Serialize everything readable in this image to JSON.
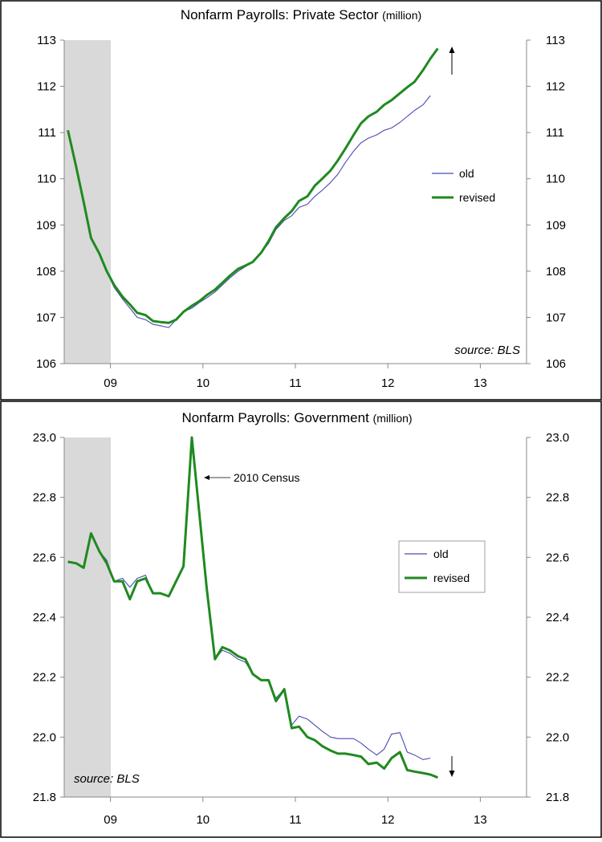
{
  "colors": {
    "old": "#4a4ab0",
    "revised": "#1f8a1f",
    "recession": "#d9d9d9",
    "frame": "#000000",
    "axis": "#888888"
  },
  "chart_data": [
    {
      "type": "line",
      "title": "Nonfarm Payrolls: Private Sector",
      "title_unit": "(million)",
      "source": "source: BLS",
      "legend_position": "right",
      "grid": false,
      "x_tick_labels": [
        "09",
        "10",
        "11",
        "12",
        "13"
      ],
      "x_ticks": [
        2009.0,
        2010.0,
        2011.0,
        2012.0,
        2013.0
      ],
      "xlim": [
        2008.5,
        2013.5
      ],
      "y_tick_labels": [
        "106",
        "107",
        "108",
        "109",
        "110",
        "111",
        "112",
        "113"
      ],
      "y_ticks": [
        106,
        107,
        108,
        109,
        110,
        111,
        112,
        113
      ],
      "ylim": [
        106,
        113
      ],
      "recession_shading": [
        2008.5,
        2009.0
      ],
      "arrow_direction": "up",
      "series": [
        {
          "name": "old",
          "x": [
            2008.54,
            2008.63,
            2008.71,
            2008.79,
            2008.88,
            2008.96,
            2009.04,
            2009.13,
            2009.21,
            2009.29,
            2009.38,
            2009.46,
            2009.54,
            2009.63,
            2009.71,
            2009.79,
            2009.88,
            2009.96,
            2010.04,
            2010.13,
            2010.21,
            2010.29,
            2010.38,
            2010.46,
            2010.54,
            2010.63,
            2010.71,
            2010.79,
            2010.88,
            2010.96,
            2011.04,
            2011.13,
            2011.21,
            2011.29,
            2011.38,
            2011.46,
            2011.54,
            2011.63,
            2011.71,
            2011.79,
            2011.88,
            2011.96,
            2012.04,
            2012.13,
            2012.21,
            2012.29,
            2012.38,
            2012.46
          ],
          "y": [
            111.05,
            110.25,
            109.5,
            108.7,
            108.4,
            107.98,
            107.65,
            107.4,
            107.2,
            107.0,
            106.95,
            106.85,
            106.82,
            106.78,
            106.95,
            107.12,
            107.2,
            107.32,
            107.42,
            107.55,
            107.7,
            107.85,
            108.0,
            108.1,
            108.2,
            108.4,
            108.6,
            108.9,
            109.1,
            109.2,
            109.38,
            109.45,
            109.62,
            109.75,
            109.92,
            110.1,
            110.35,
            110.6,
            110.78,
            110.88,
            110.95,
            111.05,
            111.1,
            111.22,
            111.35,
            111.48,
            111.6,
            111.8
          ]
        },
        {
          "name": "revised",
          "x": [
            2008.54,
            2008.63,
            2008.71,
            2008.79,
            2008.88,
            2008.96,
            2009.04,
            2009.13,
            2009.21,
            2009.29,
            2009.38,
            2009.46,
            2009.54,
            2009.63,
            2009.71,
            2009.79,
            2009.88,
            2009.96,
            2010.04,
            2010.13,
            2010.21,
            2010.29,
            2010.38,
            2010.46,
            2010.54,
            2010.63,
            2010.71,
            2010.79,
            2010.88,
            2010.96,
            2011.04,
            2011.13,
            2011.21,
            2011.29,
            2011.38,
            2011.46,
            2011.54,
            2011.63,
            2011.71,
            2011.79,
            2011.88,
            2011.96,
            2012.04,
            2012.13,
            2012.21,
            2012.29,
            2012.38,
            2012.46,
            2012.54
          ],
          "y": [
            111.05,
            110.25,
            109.5,
            108.72,
            108.38,
            108.0,
            107.7,
            107.45,
            107.28,
            107.1,
            107.05,
            106.92,
            106.9,
            106.88,
            106.95,
            107.12,
            107.25,
            107.35,
            107.48,
            107.6,
            107.75,
            107.9,
            108.05,
            108.12,
            108.2,
            108.4,
            108.65,
            108.95,
            109.15,
            109.3,
            109.52,
            109.62,
            109.85,
            110.0,
            110.18,
            110.4,
            110.65,
            110.95,
            111.2,
            111.35,
            111.45,
            111.6,
            111.7,
            111.85,
            111.98,
            112.1,
            112.35,
            112.6,
            112.82
          ]
        }
      ]
    },
    {
      "type": "line",
      "title": "Nonfarm Payrolls: Government",
      "title_unit": "(million)",
      "source": "source: BLS",
      "legend_position": "right",
      "grid": false,
      "annotation": "2010 Census",
      "x_tick_labels": [
        "09",
        "10",
        "11",
        "12",
        "13"
      ],
      "x_ticks": [
        2009.0,
        2010.0,
        2011.0,
        2012.0,
        2013.0
      ],
      "xlim": [
        2008.5,
        2013.5
      ],
      "y_tick_labels": [
        "21.8",
        "22.0",
        "22.2",
        "22.4",
        "22.6",
        "22.8",
        "23.0"
      ],
      "y_ticks": [
        21.8,
        22.0,
        22.2,
        22.4,
        22.6,
        22.8,
        23.0
      ],
      "ylim": [
        21.8,
        23.0
      ],
      "recession_shading": [
        2008.5,
        2009.0
      ],
      "arrow_direction": "down",
      "series": [
        {
          "name": "old",
          "x": [
            2008.54,
            2008.63,
            2008.71,
            2008.79,
            2008.88,
            2008.96,
            2009.04,
            2009.13,
            2009.21,
            2009.29,
            2009.38,
            2009.46,
            2009.54,
            2009.63,
            2009.71,
            2009.79,
            2009.88,
            2009.96,
            2010.04,
            2010.13,
            2010.21,
            2010.29,
            2010.38,
            2010.46,
            2010.54,
            2010.63,
            2010.71,
            2010.79,
            2010.88,
            2010.96,
            2011.04,
            2011.13,
            2011.21,
            2011.29,
            2011.38,
            2011.46,
            2011.54,
            2011.63,
            2011.71,
            2011.79,
            2011.88,
            2011.96,
            2012.04,
            2012.13,
            2012.21,
            2012.29,
            2012.38,
            2012.46
          ],
          "y": [
            22.585,
            22.58,
            22.565,
            22.68,
            22.62,
            22.59,
            22.52,
            22.53,
            22.5,
            22.53,
            22.54,
            22.48,
            22.48,
            22.47,
            22.52,
            22.57,
            23.0,
            22.75,
            22.5,
            22.26,
            22.29,
            22.28,
            22.26,
            22.25,
            22.21,
            22.19,
            22.19,
            22.13,
            22.16,
            22.04,
            22.07,
            22.06,
            22.04,
            22.02,
            22.0,
            21.995,
            21.995,
            21.995,
            21.98,
            21.96,
            21.94,
            21.96,
            22.01,
            22.015,
            21.95,
            21.94,
            21.925,
            21.93
          ]
        },
        {
          "name": "revised",
          "x": [
            2008.54,
            2008.63,
            2008.71,
            2008.79,
            2008.88,
            2008.96,
            2009.04,
            2009.13,
            2009.21,
            2009.29,
            2009.38,
            2009.46,
            2009.54,
            2009.63,
            2009.71,
            2009.79,
            2009.88,
            2009.96,
            2010.04,
            2010.13,
            2010.21,
            2010.29,
            2010.38,
            2010.46,
            2010.54,
            2010.63,
            2010.71,
            2010.79,
            2010.88,
            2010.96,
            2011.04,
            2011.13,
            2011.21,
            2011.29,
            2011.38,
            2011.46,
            2011.54,
            2011.63,
            2011.71,
            2011.79,
            2011.88,
            2011.96,
            2012.04,
            2012.13,
            2012.21,
            2012.29,
            2012.38,
            2012.46,
            2012.54
          ],
          "y": [
            22.585,
            22.58,
            22.565,
            22.68,
            22.62,
            22.58,
            22.52,
            22.52,
            22.46,
            22.52,
            22.53,
            22.48,
            22.48,
            22.47,
            22.52,
            22.57,
            23.0,
            22.75,
            22.5,
            22.26,
            22.3,
            22.29,
            22.27,
            22.26,
            22.21,
            22.19,
            22.19,
            22.12,
            22.16,
            22.03,
            22.035,
            22.0,
            21.99,
            21.97,
            21.955,
            21.945,
            21.945,
            21.94,
            21.935,
            21.91,
            21.915,
            21.895,
            21.93,
            21.95,
            21.89,
            21.885,
            21.88,
            21.875,
            21.865
          ]
        }
      ]
    }
  ]
}
